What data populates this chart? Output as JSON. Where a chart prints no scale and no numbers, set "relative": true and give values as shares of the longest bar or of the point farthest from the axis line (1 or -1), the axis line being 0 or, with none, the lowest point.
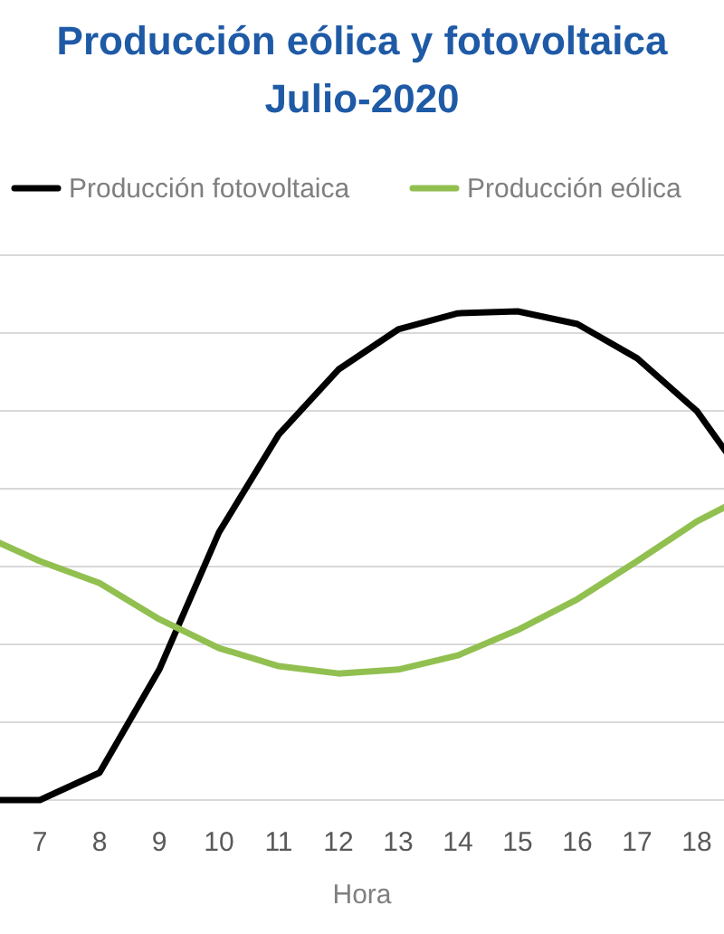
{
  "chart_data": {
    "type": "line",
    "title": "Producción eólica y fotovoltaica\nJulio-2020",
    "xlabel": "Hora",
    "categories": [
      null,
      "7",
      "8",
      "9",
      "10",
      "11",
      "12",
      "13",
      "14",
      "15",
      "16",
      "17",
      "18",
      null
    ],
    "relative": true,
    "grid": "y",
    "legend": "top",
    "marker": "none",
    "line_style": "solid",
    "series": [
      {
        "name": "Producción fotovoltaica",
        "color": "#000000",
        "values": [
          0,
          0,
          0.056,
          0.267,
          0.548,
          0.748,
          0.881,
          0.963,
          0.996,
          1,
          0.974,
          0.904,
          0.796,
          0.626
        ]
      },
      {
        "name": "Producción eólica",
        "color": "#92c050",
        "values": [
          0.544,
          0.489,
          0.444,
          0.37,
          0.311,
          0.274,
          0.259,
          0.267,
          0.296,
          0.348,
          0.411,
          0.489,
          0.57,
          0.633
        ]
      }
    ]
  }
}
